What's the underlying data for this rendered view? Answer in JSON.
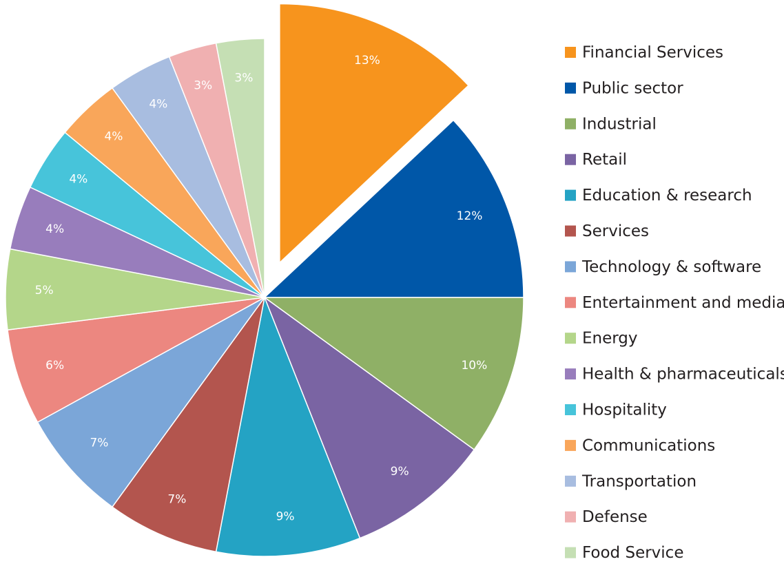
{
  "chart_data": {
    "type": "pie",
    "categories": [
      "Financial Services",
      "Public sector",
      "Industrial",
      "Retail",
      "Education & research",
      "Services",
      "Technology & software",
      "Entertainment and media",
      "Energy",
      "Health & pharmaceuticals",
      "Hospitality",
      "Communications",
      "Transportation",
      "Defense",
      "Food Service"
    ],
    "values": [
      13,
      12,
      10,
      9,
      9,
      7,
      7,
      6,
      5,
      4,
      4,
      4,
      4,
      3,
      3
    ],
    "value_labels": [
      "13%",
      "12%",
      "10%",
      "9%",
      "9%",
      "7%",
      "7%",
      "6%",
      "5%",
      "4%",
      "4%",
      "4%",
      "4%",
      "3%",
      "3%"
    ],
    "colors": [
      "#f7941d",
      "#0057a8",
      "#8fb066",
      "#7a64a3",
      "#24a3c4",
      "#b3554e",
      "#7ba6d8",
      "#ec8780",
      "#b4d68a",
      "#987dbc",
      "#47c4da",
      "#f9a65a",
      "#a8bde0",
      "#f0b0b1",
      "#c5dfb4"
    ],
    "exploded": [
      "Financial Services"
    ],
    "legend": "right"
  }
}
